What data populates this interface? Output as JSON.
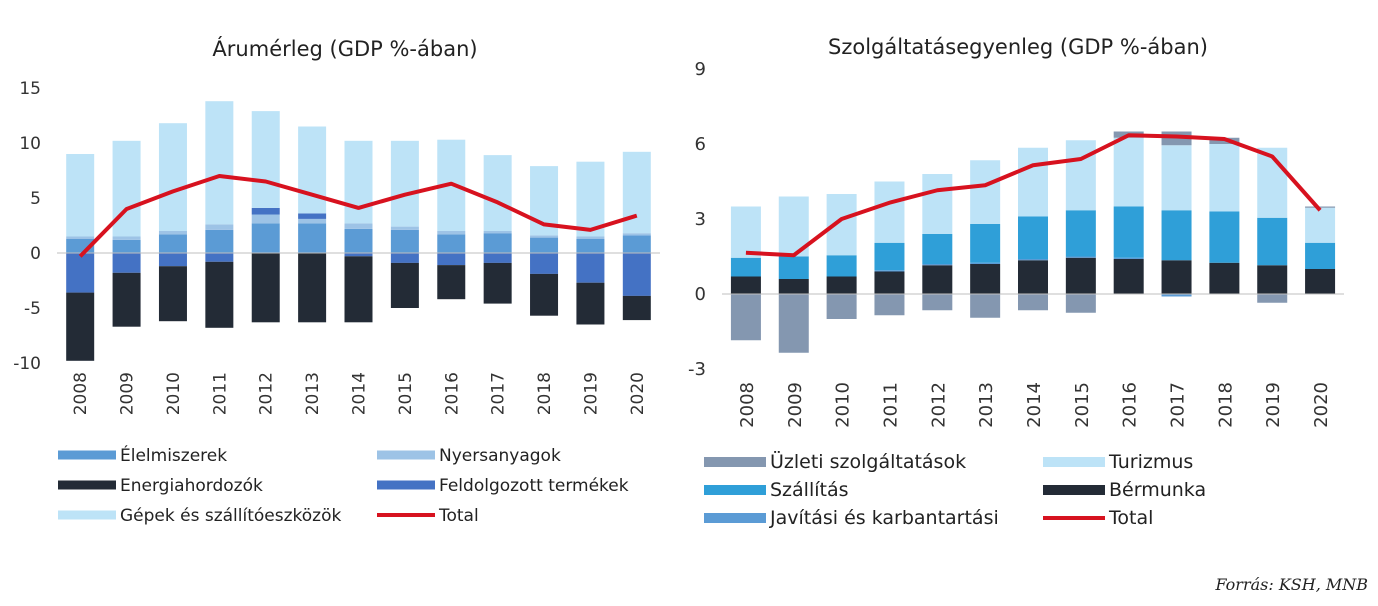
{
  "source_note": "Forrás: KSH, MNB",
  "chart_data": [
    {
      "type": "bar",
      "stacked": true,
      "title": "Árumérleg (GDP %-ában)",
      "categories": [
        "2008",
        "2009",
        "2010",
        "2011",
        "2012",
        "2013",
        "2014",
        "2015",
        "2016",
        "2017",
        "2018",
        "2019",
        "2020"
      ],
      "ylim": [
        -10,
        15
      ],
      "yticks": [
        15,
        10,
        5,
        0,
        -5,
        -10
      ],
      "ytick_labels": [
        "15",
        "10",
        "5",
        "0",
        "-5",
        "-10"
      ],
      "grid": false,
      "legend_position": "bottom",
      "colors": {
        "food": "#5b9bd5",
        "raw": "#9dc3e6",
        "energy": "#232b36",
        "processed": "#4472c4",
        "machinery": "#bde3f7",
        "total": "#d7121f"
      },
      "series": [
        {
          "key": "food",
          "name": "Élelmiszerek",
          "values": [
            1.3,
            1.2,
            1.7,
            2.1,
            2.7,
            2.7,
            2.2,
            2.1,
            1.7,
            1.8,
            1.4,
            1.3,
            1.6
          ]
        },
        {
          "key": "raw",
          "name": "Nyersanyagok",
          "values": [
            0.2,
            0.3,
            0.3,
            0.5,
            0.8,
            0.4,
            0.5,
            0.3,
            0.3,
            0.2,
            0.2,
            0.2,
            0.2
          ]
        },
        {
          "key": "energy",
          "name": "Energiahordozók",
          "values": [
            -6.2,
            -4.9,
            -5.0,
            -6.0,
            -6.3,
            -6.3,
            -6.0,
            -4.1,
            -3.1,
            -3.7,
            -3.8,
            -3.8,
            -2.2
          ]
        },
        {
          "key": "processed",
          "name": "Feldolgozott termékek",
          "values": [
            -3.6,
            -1.8,
            -1.2,
            -0.8,
            0.6,
            0.5,
            -0.3,
            -0.9,
            -1.1,
            -0.9,
            -1.9,
            -2.7,
            -3.9
          ]
        },
        {
          "key": "machinery",
          "name": "Gépek és szállítóeszközök",
          "values": [
            7.5,
            8.7,
            9.8,
            11.2,
            8.8,
            7.9,
            7.5,
            7.8,
            8.3,
            6.9,
            6.3,
            6.8,
            7.4
          ]
        },
        {
          "key": "total",
          "name": "Total",
          "type": "line",
          "values": [
            -0.3,
            4.0,
            5.6,
            7.0,
            6.5,
            5.3,
            4.1,
            5.3,
            6.3,
            4.6,
            2.6,
            2.1,
            3.4
          ]
        }
      ]
    },
    {
      "type": "bar",
      "stacked": true,
      "title": "Szolgáltatásegyenleg (GDP %-ában)",
      "categories": [
        "2008",
        "2009",
        "2010",
        "2011",
        "2012",
        "2013",
        "2014",
        "2015",
        "2016",
        "2017",
        "2018",
        "2019",
        "2020"
      ],
      "ylim": [
        -3,
        9
      ],
      "yticks": [
        9,
        6,
        3,
        0,
        -3
      ],
      "ytick_labels": [
        "9",
        "6",
        "3",
        "0",
        "-3"
      ],
      "grid": false,
      "legend_position": "bottom",
      "colors": {
        "business": "#8497b0",
        "tourism": "#bde3f7",
        "transport": "#2f9fd8",
        "manufacturing": "#232b36",
        "repair": "#5b9bd5",
        "total": "#d7121f"
      },
      "series": [
        {
          "key": "business",
          "name": "Üzleti szolgáltatások",
          "values": [
            -1.85,
            -2.35,
            -1.0,
            -0.85,
            -0.65,
            -0.95,
            -0.65,
            -0.75,
            0.25,
            0.55,
            0.25,
            -0.35,
            0.05
          ]
        },
        {
          "key": "tourism",
          "name": "Turizmus",
          "values": [
            2.05,
            2.4,
            2.45,
            2.45,
            2.4,
            2.55,
            2.75,
            2.8,
            2.75,
            2.6,
            2.7,
            2.8,
            1.4
          ]
        },
        {
          "key": "transport",
          "name": "Szállítás",
          "values": [
            0.75,
            0.9,
            0.85,
            1.1,
            1.2,
            1.55,
            1.7,
            1.85,
            2.05,
            2.0,
            2.05,
            1.9,
            1.05
          ]
        },
        {
          "key": "manufacturing",
          "name": "Bérmunka",
          "values": [
            0.7,
            0.6,
            0.7,
            0.9,
            1.15,
            1.2,
            1.35,
            1.45,
            1.4,
            1.35,
            1.25,
            1.15,
            1.0
          ]
        },
        {
          "key": "repair",
          "name": "Javítási és karbantartási",
          "values": [
            0.0,
            0.0,
            0.0,
            0.05,
            0.05,
            0.05,
            0.05,
            0.05,
            0.05,
            -0.1,
            0.0,
            0.0,
            0.0
          ]
        },
        {
          "key": "total",
          "name": "Total",
          "type": "line",
          "values": [
            1.65,
            1.55,
            3.0,
            3.65,
            4.15,
            4.35,
            5.15,
            5.4,
            6.35,
            6.3,
            6.2,
            5.5,
            3.35
          ]
        }
      ]
    }
  ]
}
